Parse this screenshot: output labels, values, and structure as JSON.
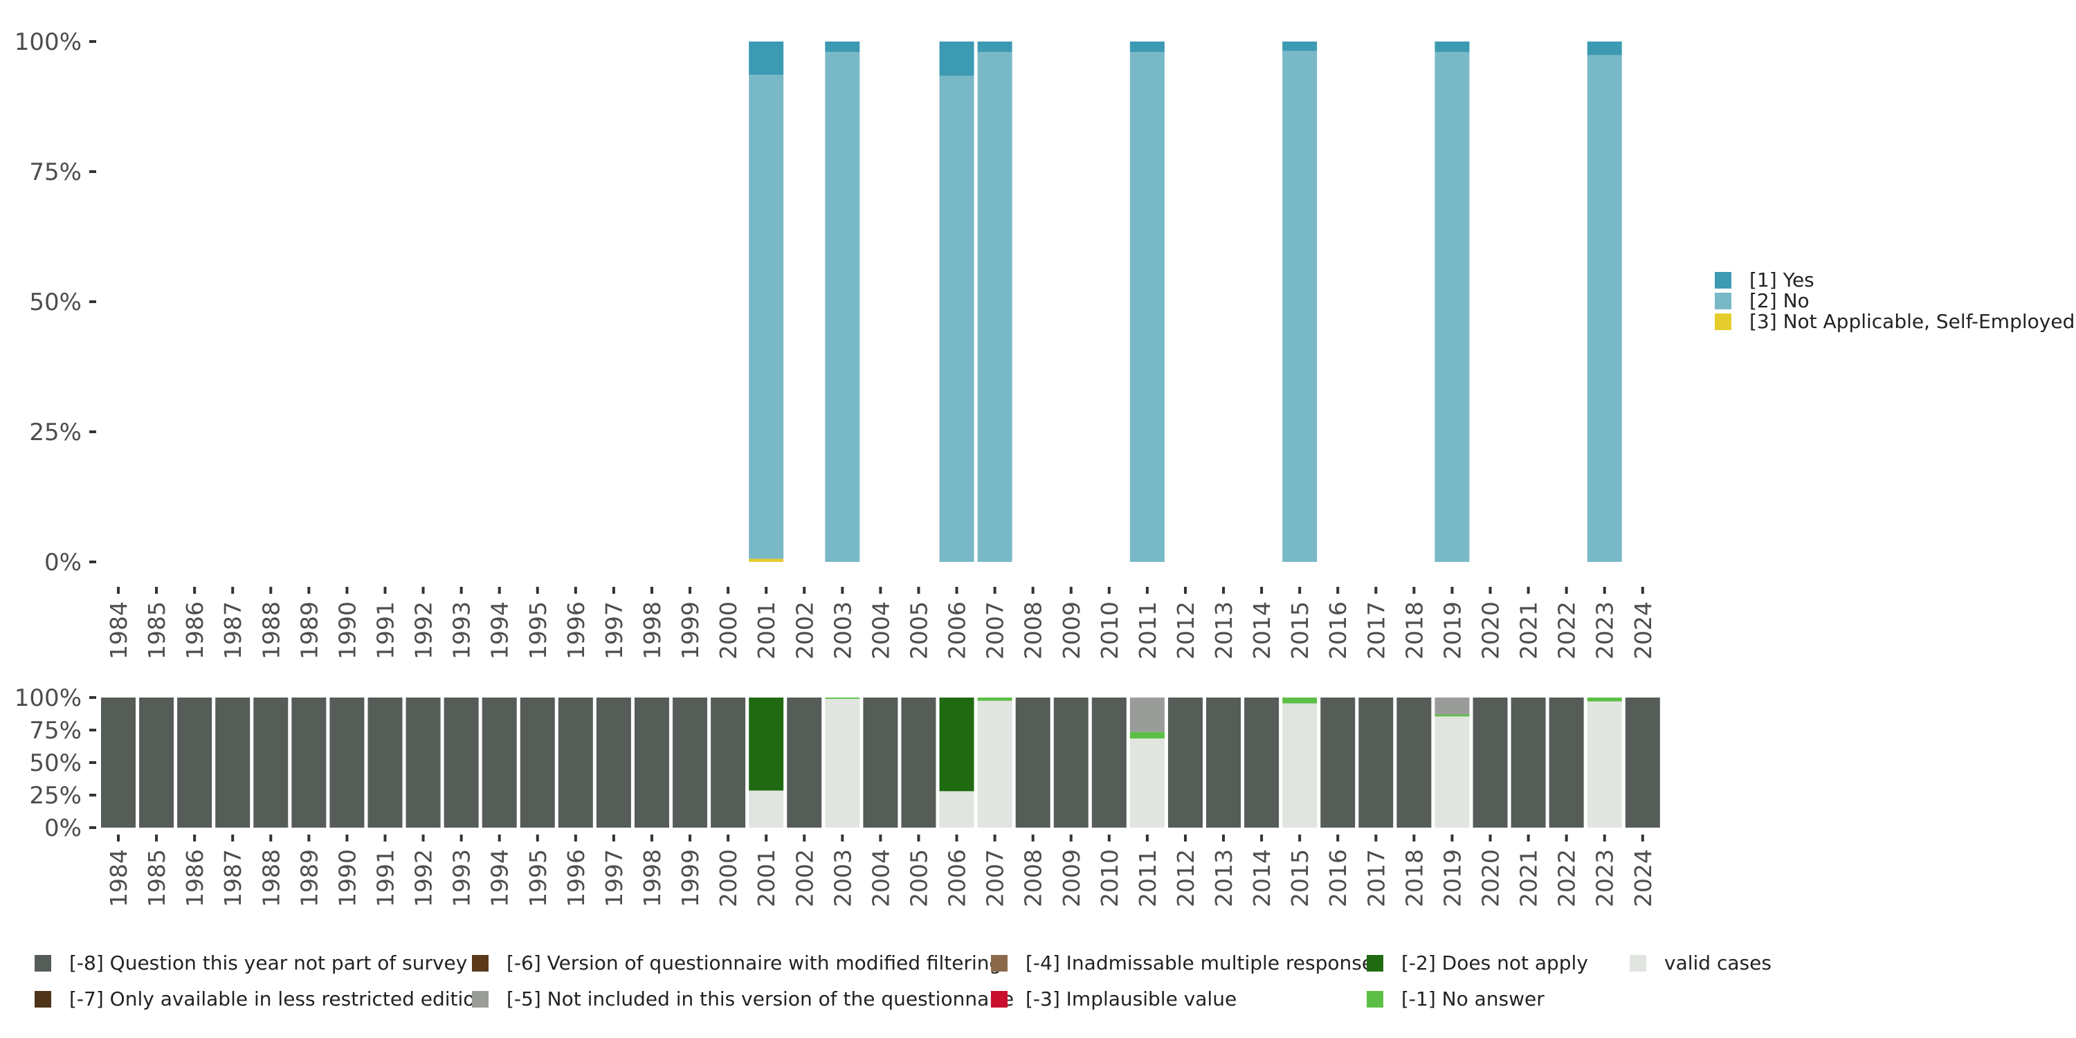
{
  "chart_data": [
    {
      "type": "bar",
      "stacked": true,
      "percent": true,
      "x": [
        1984,
        1985,
        1986,
        1987,
        1988,
        1989,
        1990,
        1991,
        1992,
        1993,
        1994,
        1995,
        1996,
        1997,
        1998,
        1999,
        2000,
        2001,
        2002,
        2003,
        2004,
        2005,
        2006,
        2007,
        2008,
        2009,
        2010,
        2011,
        2012,
        2013,
        2014,
        2015,
        2016,
        2017,
        2018,
        2019,
        2020,
        2021,
        2022,
        2023,
        2024
      ],
      "ylim": [
        0,
        100
      ],
      "yticks": [
        "0%",
        "25%",
        "50%",
        "75%",
        "100%"
      ],
      "legend_position": "right",
      "series": [
        {
          "name": "[3] Not Applicable, Self-Employed",
          "color": "#e6cd2e",
          "values": {
            "2001": 0.6,
            "2003": 0,
            "2006": 0,
            "2007": 0,
            "2011": 0,
            "2015": 0,
            "2019": 0,
            "2023": 0
          }
        },
        {
          "name": "[2] No",
          "color": "#79b8c6",
          "values": {
            "2001": 93,
            "2003": 98,
            "2006": 93.4,
            "2007": 98,
            "2011": 98,
            "2015": 98.2,
            "2019": 98,
            "2023": 97.4
          }
        },
        {
          "name": "[1] Yes",
          "color": "#3d9ab3",
          "values": {
            "2001": 6.4,
            "2003": 2,
            "2006": 6.6,
            "2007": 2,
            "2011": 2,
            "2015": 1.8,
            "2019": 2,
            "2023": 2.6
          }
        }
      ],
      "legend_order": [
        "[1] Yes",
        "[2] No",
        "[3] Not Applicable, Self-Employed"
      ]
    },
    {
      "type": "bar",
      "stacked": true,
      "percent": true,
      "x": [
        1984,
        1985,
        1986,
        1987,
        1988,
        1989,
        1990,
        1991,
        1992,
        1993,
        1994,
        1995,
        1996,
        1997,
        1998,
        1999,
        2000,
        2001,
        2002,
        2003,
        2004,
        2005,
        2006,
        2007,
        2008,
        2009,
        2010,
        2011,
        2012,
        2013,
        2014,
        2015,
        2016,
        2017,
        2018,
        2019,
        2020,
        2021,
        2022,
        2023,
        2024
      ],
      "ylim": [
        0,
        100
      ],
      "yticks": [
        "0%",
        "25%",
        "50%",
        "75%",
        "100%"
      ],
      "legend_position": "bottom",
      "categories": [
        {
          "name": "[-8] Question this year not part of survey",
          "color": "#565c57"
        },
        {
          "name": "[-7] Only available in less restricted edition",
          "color": "#4e3419"
        },
        {
          "name": "[-6] Version of questionnaire with modified filtering",
          "color": "#5a3a1a"
        },
        {
          "name": "[-5] Not included in this version of the questionnaire",
          "color": "#999c98"
        },
        {
          "name": "[-4] Inadmissable multiple response",
          "color": "#8b6a4c"
        },
        {
          "name": "[-3] Implausible value",
          "color": "#c8102e"
        },
        {
          "name": "[-2] Does not apply",
          "color": "#206b12"
        },
        {
          "name": "[-1] No answer",
          "color": "#5cbf45"
        },
        {
          "name": "valid cases",
          "color": "#e1e5e0"
        }
      ],
      "stack_order": [
        "valid cases",
        "[-1] No answer",
        "[-2] Does not apply",
        "[-3] Implausible value",
        "[-4] Inadmissable multiple response",
        "[-5] Not included in this version of the questionnaire",
        "[-6] Version of questionnaire with modified filtering",
        "[-7] Only available in less restricted edition",
        "[-8] Question this year not part of survey"
      ],
      "values": {
        "2001": {
          "valid cases": 28.5,
          "[-2] Does not apply": 71.5
        },
        "2003": {
          "valid cases": 99,
          "[-1] No answer": 1
        },
        "2006": {
          "valid cases": 28,
          "[-2] Does not apply": 72
        },
        "2007": {
          "valid cases": 97.5,
          "[-1] No answer": 2.5
        },
        "2011": {
          "valid cases": 68.5,
          "[-1] No answer": 5,
          "[-5] Not included in this version of the questionnaire": 26.5
        },
        "2015": {
          "valid cases": 95.5,
          "[-1] No answer": 4.5
        },
        "2019": {
          "valid cases": 85.5,
          "[-1] No answer": 1.5,
          "[-5] Not included in this version of the questionnaire": 13
        },
        "2023": {
          "valid cases": 97,
          "[-1] No answer": 3
        }
      },
      "default": {
        "[-8] Question this year not part of survey": 100
      }
    }
  ]
}
